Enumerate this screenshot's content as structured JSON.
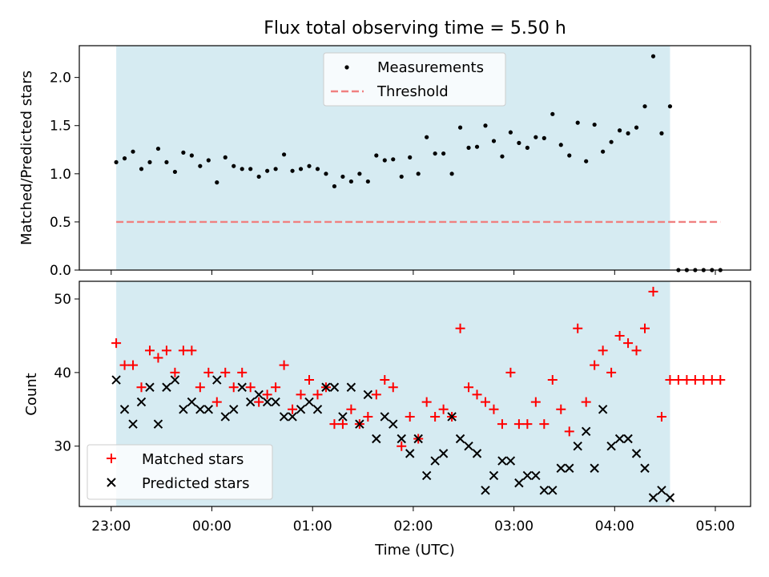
{
  "chart_data": [
    {
      "type": "scatter",
      "title": "Flux total observing time = 5.50 h",
      "xlabel": "",
      "ylabel": "Matched/Predicted stars",
      "xlim": [
        "22:41",
        "05:21"
      ],
      "ylim": [
        0,
        2.33
      ],
      "yticks": [
        "0.0",
        "0.5",
        "1.0",
        "1.5",
        "2.0"
      ],
      "observing_window": [
        "23:03",
        "04:33"
      ],
      "series": [
        {
          "name": "Measurements",
          "style": "black-dots",
          "points": [
            [
              "23:03",
              1.12
            ],
            [
              "23:08",
              1.16
            ],
            [
              "23:13",
              1.23
            ],
            [
              "23:18",
              1.05
            ],
            [
              "23:23",
              1.12
            ],
            [
              "23:28",
              1.26
            ],
            [
              "23:33",
              1.12
            ],
            [
              "23:38",
              1.02
            ],
            [
              "23:43",
              1.22
            ],
            [
              "23:48",
              1.19
            ],
            [
              "23:53",
              1.08
            ],
            [
              "23:58",
              1.14
            ],
            [
              "00:03",
              0.91
            ],
            [
              "00:08",
              1.17
            ],
            [
              "00:13",
              1.08
            ],
            [
              "00:18",
              1.05
            ],
            [
              "00:23",
              1.05
            ],
            [
              "00:28",
              0.97
            ],
            [
              "00:33",
              1.03
            ],
            [
              "00:38",
              1.05
            ],
            [
              "00:43",
              1.2
            ],
            [
              "00:48",
              1.03
            ],
            [
              "00:53",
              1.05
            ],
            [
              "00:58",
              1.08
            ],
            [
              "01:03",
              1.05
            ],
            [
              "01:08",
              1.0
            ],
            [
              "01:13",
              0.87
            ],
            [
              "01:18",
              0.97
            ],
            [
              "01:23",
              0.92
            ],
            [
              "01:28",
              1.0
            ],
            [
              "01:33",
              0.92
            ],
            [
              "01:38",
              1.19
            ],
            [
              "01:43",
              1.14
            ],
            [
              "01:48",
              1.15
            ],
            [
              "01:53",
              0.97
            ],
            [
              "01:58",
              1.17
            ],
            [
              "02:03",
              1.0
            ],
            [
              "02:08",
              1.38
            ],
            [
              "02:13",
              1.21
            ],
            [
              "02:18",
              1.21
            ],
            [
              "02:23",
              1.0
            ],
            [
              "02:28",
              1.48
            ],
            [
              "02:33",
              1.27
            ],
            [
              "02:38",
              1.28
            ],
            [
              "02:43",
              1.5
            ],
            [
              "02:48",
              1.34
            ],
            [
              "02:53",
              1.18
            ],
            [
              "02:58",
              1.43
            ],
            [
              "03:03",
              1.32
            ],
            [
              "03:08",
              1.27
            ],
            [
              "03:13",
              1.38
            ],
            [
              "03:18",
              1.37
            ],
            [
              "03:23",
              1.62
            ],
            [
              "03:28",
              1.3
            ],
            [
              "03:33",
              1.19
            ],
            [
              "03:38",
              1.53
            ],
            [
              "03:43",
              1.13
            ],
            [
              "03:48",
              1.51
            ],
            [
              "03:53",
              1.23
            ],
            [
              "03:58",
              1.33
            ],
            [
              "04:03",
              1.45
            ],
            [
              "04:08",
              1.42
            ],
            [
              "04:13",
              1.48
            ],
            [
              "04:18",
              1.7
            ],
            [
              "04:23",
              2.22
            ],
            [
              "04:28",
              1.42
            ],
            [
              "04:33",
              1.7
            ],
            [
              "04:38",
              0.0
            ],
            [
              "04:43",
              0.0
            ],
            [
              "04:48",
              0.0
            ],
            [
              "04:53",
              0.0
            ],
            [
              "04:58",
              0.0
            ],
            [
              "05:03",
              0.0
            ]
          ]
        },
        {
          "name": "Threshold",
          "style": "dashed-line",
          "color": "#f08080",
          "points": [
            [
              "23:03",
              0.5
            ],
            [
              "05:03",
              0.5
            ]
          ]
        }
      ],
      "legend": "upper-center"
    },
    {
      "type": "scatter",
      "title": "",
      "xlabel": "Time (UTC)",
      "ylabel": "Count",
      "xlim": [
        "22:41",
        "05:21"
      ],
      "ylim": [
        21.8,
        52.4
      ],
      "yticks": [
        "30",
        "40",
        "50"
      ],
      "xticks": [
        "23:00",
        "00:00",
        "01:00",
        "02:00",
        "03:00",
        "04:00",
        "05:00"
      ],
      "observing_window": [
        "23:03",
        "04:33"
      ],
      "series": [
        {
          "name": "Matched stars",
          "style": "red-plus",
          "color": "#ff0000",
          "points": [
            [
              "23:03",
              44
            ],
            [
              "23:08",
              41
            ],
            [
              "23:13",
              41
            ],
            [
              "23:18",
              38
            ],
            [
              "23:23",
              43
            ],
            [
              "23:28",
              42
            ],
            [
              "23:33",
              43
            ],
            [
              "23:38",
              40
            ],
            [
              "23:43",
              43
            ],
            [
              "23:48",
              43
            ],
            [
              "23:53",
              38
            ],
            [
              "23:58",
              40
            ],
            [
              "00:03",
              36
            ],
            [
              "00:08",
              40
            ],
            [
              "00:13",
              38
            ],
            [
              "00:18",
              40
            ],
            [
              "00:23",
              38
            ],
            [
              "00:28",
              36
            ],
            [
              "00:33",
              37
            ],
            [
              "00:38",
              38
            ],
            [
              "00:43",
              41
            ],
            [
              "00:48",
              35
            ],
            [
              "00:53",
              37
            ],
            [
              "00:58",
              39
            ],
            [
              "01:03",
              37
            ],
            [
              "01:08",
              38
            ],
            [
              "01:13",
              33
            ],
            [
              "01:18",
              33
            ],
            [
              "01:23",
              35
            ],
            [
              "01:28",
              33
            ],
            [
              "01:33",
              34
            ],
            [
              "01:38",
              37
            ],
            [
              "01:43",
              39
            ],
            [
              "01:48",
              38
            ],
            [
              "01:53",
              30
            ],
            [
              "01:58",
              34
            ],
            [
              "02:03",
              31
            ],
            [
              "02:08",
              36
            ],
            [
              "02:13",
              34
            ],
            [
              "02:18",
              35
            ],
            [
              "02:23",
              34
            ],
            [
              "02:28",
              46
            ],
            [
              "02:33",
              38
            ],
            [
              "02:38",
              37
            ],
            [
              "02:43",
              36
            ],
            [
              "02:48",
              35
            ],
            [
              "02:53",
              33
            ],
            [
              "02:58",
              40
            ],
            [
              "03:03",
              33
            ],
            [
              "03:08",
              33
            ],
            [
              "03:13",
              36
            ],
            [
              "03:18",
              33
            ],
            [
              "03:23",
              39
            ],
            [
              "03:28",
              35
            ],
            [
              "03:33",
              32
            ],
            [
              "03:38",
              46
            ],
            [
              "03:43",
              36
            ],
            [
              "03:48",
              41
            ],
            [
              "03:53",
              43
            ],
            [
              "03:58",
              40
            ],
            [
              "04:03",
              45
            ],
            [
              "04:08",
              44
            ],
            [
              "04:13",
              43
            ],
            [
              "04:18",
              46
            ],
            [
              "04:23",
              51
            ],
            [
              "04:28",
              34
            ],
            [
              "04:33",
              39
            ],
            [
              "04:38",
              39
            ],
            [
              "04:43",
              39
            ],
            [
              "04:48",
              39
            ],
            [
              "04:53",
              39
            ],
            [
              "04:58",
              39
            ],
            [
              "05:03",
              39
            ]
          ]
        },
        {
          "name": "Predicted stars",
          "style": "black-x",
          "color": "#000000",
          "points": [
            [
              "23:03",
              39
            ],
            [
              "23:08",
              35
            ],
            [
              "23:13",
              33
            ],
            [
              "23:18",
              36
            ],
            [
              "23:23",
              38
            ],
            [
              "23:28",
              33
            ],
            [
              "23:33",
              38
            ],
            [
              "23:38",
              39
            ],
            [
              "23:43",
              35
            ],
            [
              "23:48",
              36
            ],
            [
              "23:53",
              35
            ],
            [
              "23:58",
              35
            ],
            [
              "00:03",
              39
            ],
            [
              "00:08",
              34
            ],
            [
              "00:13",
              35
            ],
            [
              "00:18",
              38
            ],
            [
              "00:23",
              36
            ],
            [
              "00:28",
              37
            ],
            [
              "00:33",
              36
            ],
            [
              "00:38",
              36
            ],
            [
              "00:43",
              34
            ],
            [
              "00:48",
              34
            ],
            [
              "00:53",
              35
            ],
            [
              "00:58",
              36
            ],
            [
              "01:03",
              35
            ],
            [
              "01:08",
              38
            ],
            [
              "01:13",
              38
            ],
            [
              "01:18",
              34
            ],
            [
              "01:23",
              38
            ],
            [
              "01:28",
              33
            ],
            [
              "01:33",
              37
            ],
            [
              "01:38",
              31
            ],
            [
              "01:43",
              34
            ],
            [
              "01:48",
              33
            ],
            [
              "01:53",
              31
            ],
            [
              "01:58",
              29
            ],
            [
              "02:03",
              31
            ],
            [
              "02:08",
              26
            ],
            [
              "02:13",
              28
            ],
            [
              "02:18",
              29
            ],
            [
              "02:23",
              34
            ],
            [
              "02:28",
              31
            ],
            [
              "02:33",
              30
            ],
            [
              "02:38",
              29
            ],
            [
              "02:43",
              24
            ],
            [
              "02:48",
              26
            ],
            [
              "02:53",
              28
            ],
            [
              "02:58",
              28
            ],
            [
              "03:03",
              25
            ],
            [
              "03:08",
              26
            ],
            [
              "03:13",
              26
            ],
            [
              "03:18",
              24
            ],
            [
              "03:23",
              24
            ],
            [
              "03:28",
              27
            ],
            [
              "03:33",
              27
            ],
            [
              "03:38",
              30
            ],
            [
              "03:43",
              32
            ],
            [
              "03:48",
              27
            ],
            [
              "03:53",
              35
            ],
            [
              "03:58",
              30
            ],
            [
              "04:03",
              31
            ],
            [
              "04:08",
              31
            ],
            [
              "04:13",
              29
            ],
            [
              "04:18",
              27
            ],
            [
              "04:23",
              23
            ],
            [
              "04:28",
              24
            ],
            [
              "04:33",
              23
            ]
          ]
        }
      ],
      "legend": "lower-left"
    }
  ],
  "colors": {
    "window_fill": "#add8e6",
    "threshold": "#f08080",
    "matched": "#ff0000",
    "predicted": "#000000",
    "measurements": "#000000"
  }
}
